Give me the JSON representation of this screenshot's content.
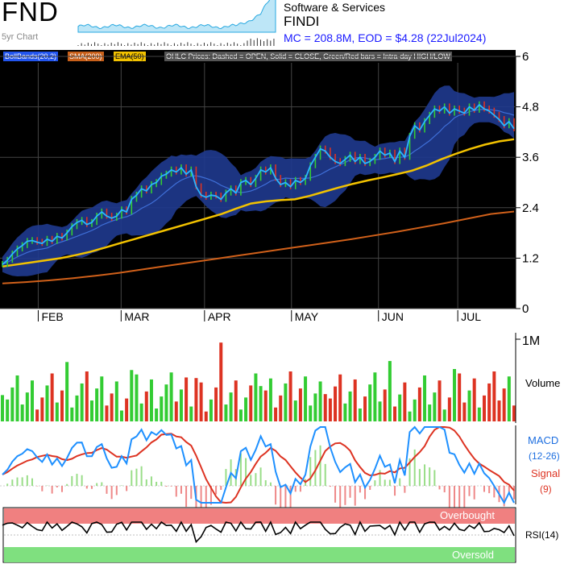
{
  "header": {
    "ticker": "FND",
    "history_label": "5yr Chart",
    "sector": "Software & Services",
    "name": "FINDI",
    "summary": "MC = 208.8M, EOD = $4.28 (22Jul2024)"
  },
  "legend": {
    "bollinger": "BollBands(20,2)",
    "sma": "SMA(200)",
    "ema": "EMA(50)",
    "ohlc_note": "OHLC Prices: Dashed = OPEN, Solid = CLOSE, Green/Red bars = Intra-day HIGH/LOW"
  },
  "colors": {
    "background": "#000000",
    "band_fill": "#1f3a8f",
    "close_line": "#2ab6ff",
    "ema": "#f2c200",
    "sma": "#d0601a",
    "up": "#33cc33",
    "down": "#dd3322",
    "macd": "#1e90ff",
    "signal": "#dd3322",
    "overbought": "#f08080",
    "oversold": "#7fe07f",
    "legend_bollinger": "#2255ee",
    "legend_sma": "#c8601a",
    "legend_ema": "#f2c200"
  },
  "chart_data": {
    "type": "line",
    "price_axis": {
      "ticks": [
        "0",
        "1.2",
        "2.4",
        "3.6",
        "4.8",
        "6"
      ],
      "ylim": [
        0,
        6
      ]
    },
    "months": [
      "FEB",
      "MAR",
      "APR",
      "MAY",
      "JUN",
      "JUL"
    ],
    "series": [
      {
        "name": "Close",
        "values": [
          1.05,
          1.15,
          1.3,
          1.42,
          1.5,
          1.6,
          1.62,
          1.58,
          1.55,
          1.65,
          1.6,
          1.72,
          1.68,
          1.8,
          1.95,
          2.05,
          2.1,
          2.0,
          2.05,
          2.2,
          2.3,
          2.2,
          2.15,
          2.2,
          2.35,
          2.3,
          2.6,
          2.7,
          2.85,
          2.8,
          2.95,
          3.0,
          3.15,
          3.2,
          3.3,
          3.25,
          3.35,
          3.2,
          3.3,
          2.9,
          2.7,
          2.65,
          2.7,
          2.68,
          2.6,
          2.75,
          2.85,
          2.75,
          3.0,
          3.05,
          2.95,
          3.1,
          3.3,
          3.25,
          3.35,
          3.1,
          2.95,
          3.0,
          2.9,
          3.05,
          3.0,
          3.1,
          3.4,
          3.6,
          3.8,
          3.75,
          3.6,
          3.5,
          3.45,
          3.55,
          3.65,
          3.5,
          3.6,
          3.45,
          3.5,
          3.6,
          3.75,
          3.65,
          3.7,
          3.5,
          3.75,
          3.6,
          4.1,
          4.35,
          4.25,
          4.45,
          4.6,
          4.75,
          4.7,
          4.8,
          4.65,
          4.75,
          4.7,
          4.65,
          4.8,
          4.72,
          4.85,
          4.75,
          4.7,
          4.6,
          4.5,
          4.35,
          4.45,
          4.28
        ]
      },
      {
        "name": "EMA(50)",
        "values": [
          1.0,
          1.05,
          1.1,
          1.15,
          1.2,
          1.27,
          1.35,
          1.45,
          1.55,
          1.65,
          1.75,
          1.85,
          1.95,
          2.05,
          2.15,
          2.25,
          2.38,
          2.5,
          2.55,
          2.58,
          2.6,
          2.68,
          2.78,
          2.88,
          2.97,
          3.05,
          3.12,
          3.2,
          3.28,
          3.4,
          3.55,
          3.68,
          3.8,
          3.9,
          3.98,
          4.03
        ]
      },
      {
        "name": "SMA(200)",
        "values": [
          0.6,
          0.63,
          0.67,
          0.72,
          0.78,
          0.85,
          0.93,
          1.01,
          1.09,
          1.17,
          1.25,
          1.33,
          1.41,
          1.49,
          1.57,
          1.65,
          1.74,
          1.83,
          1.93,
          2.03,
          2.14,
          2.25,
          2.31
        ]
      }
    ],
    "volume": {
      "ticks": [
        "1M"
      ],
      "ylim": [
        0,
        1000000
      ],
      "label": "Volume"
    },
    "macd": {
      "labels": [
        "MACD",
        "(12-26)",
        "Signal",
        "(9)"
      ]
    },
    "rsi": {
      "label": "RSI(14)",
      "upper_label": "Overbought",
      "lower_label": "Oversold"
    }
  }
}
